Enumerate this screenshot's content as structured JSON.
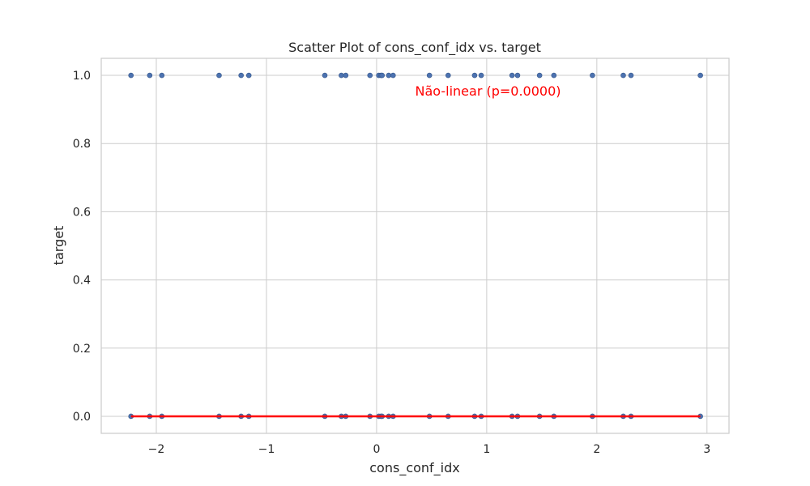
{
  "chart_data": {
    "type": "scatter",
    "title": "Scatter Plot of cons_conf_idx vs. target",
    "xlabel": "cons_conf_idx",
    "ylabel": "target",
    "xlim": [
      -2.5,
      3.2
    ],
    "ylim": [
      -0.05,
      1.05
    ],
    "xticks": [
      -2,
      -1,
      0,
      1,
      2,
      3
    ],
    "xtick_labels": [
      "−2",
      "−1",
      "0",
      "1",
      "2",
      "3"
    ],
    "yticks": [
      0.0,
      0.2,
      0.4,
      0.6,
      0.8,
      1.0
    ],
    "ytick_labels": [
      "0.0",
      "0.2",
      "0.4",
      "0.6",
      "0.8",
      "1.0"
    ],
    "grid": true,
    "point_color": "#4c72b0",
    "line_color": "#ff0000",
    "points_target_1": [
      -2.23,
      -2.06,
      -1.95,
      -1.43,
      -1.23,
      -1.16,
      -0.47,
      -0.32,
      -0.28,
      -0.06,
      0.02,
      0.04,
      0.05,
      0.11,
      0.15,
      0.48,
      0.65,
      0.89,
      0.95,
      1.23,
      1.28,
      1.48,
      1.61,
      1.96,
      2.24,
      2.31,
      2.94
    ],
    "points_target_0": [
      -2.23,
      -2.06,
      -1.95,
      -1.43,
      -1.23,
      -1.16,
      -0.47,
      -0.32,
      -0.28,
      -0.06,
      0.02,
      0.04,
      0.05,
      0.11,
      0.15,
      0.48,
      0.65,
      0.89,
      0.95,
      1.23,
      1.28,
      1.48,
      1.61,
      1.96,
      2.24,
      2.31,
      2.94
    ],
    "fit_line": {
      "x": [
        -2.23,
        2.94
      ],
      "y": [
        0.0,
        0.0
      ]
    },
    "annotation": {
      "text": "Não-linear (p=0.0000)",
      "x": 0.35,
      "y": 0.95,
      "color": "#ff0000"
    }
  }
}
